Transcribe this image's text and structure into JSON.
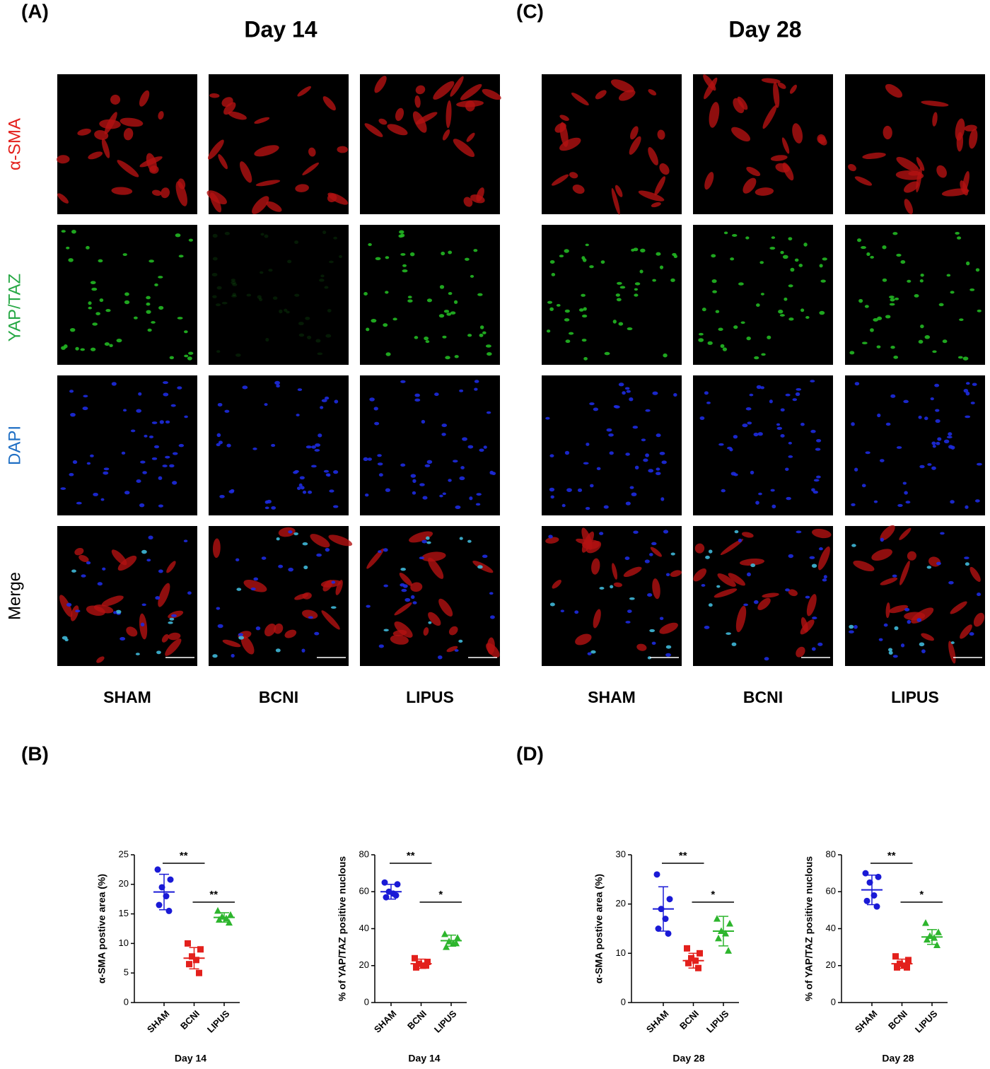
{
  "labels": {
    "a": "(A)",
    "b": "(B)",
    "c": "(C)",
    "d": "(D)"
  },
  "headers": [
    "Day 14",
    "Day 28"
  ],
  "rows": [
    "α-SMA",
    "YAP/TAZ",
    "DAPI",
    "Merge"
  ],
  "columns": [
    [
      "SHAM",
      "BCNI",
      "LIPUS"
    ],
    [
      "SHAM",
      "BCNI",
      "LIPUS"
    ]
  ],
  "chart_data": [
    {
      "type": "dot",
      "ylabel": "α-SMA postive area (%)",
      "xlabel": "Day 14",
      "ylim": [
        0,
        25
      ],
      "yticks": [
        0,
        5,
        10,
        15,
        20,
        25
      ],
      "series": [
        {
          "name": "SHAM",
          "color": "#1a1ad6",
          "marker": "circle",
          "values": [
            22.5,
            20.8,
            19.5,
            18,
            16.5,
            15.5
          ],
          "mean": 18.7,
          "sd": 3
        },
        {
          "name": "BCNI",
          "color": "#e3201c",
          "marker": "square",
          "values": [
            10,
            9,
            7.8,
            7.2,
            6.5,
            5
          ],
          "mean": 7.5,
          "sd": 1.8
        },
        {
          "name": "LIPUS",
          "color": "#2db52d",
          "marker": "triangle",
          "values": [
            15.5,
            14.8,
            14.5,
            14.2,
            14,
            13.5
          ],
          "mean": 14.4,
          "sd": 0.8
        }
      ],
      "annotations": [
        "**",
        "**"
      ]
    },
    {
      "type": "dot",
      "ylabel": "% of YAP/TAZ positive nuclous",
      "xlabel": "Day 14",
      "ylim": [
        0,
        80
      ],
      "yticks": [
        0,
        20,
        40,
        60,
        80
      ],
      "series": [
        {
          "name": "SHAM",
          "color": "#1a1ad6",
          "marker": "circle",
          "values": [
            65,
            64,
            60,
            59,
            57,
            58
          ],
          "mean": 60,
          "sd": 4
        },
        {
          "name": "BCNI",
          "color": "#e3201c",
          "marker": "square",
          "values": [
            24,
            22,
            21,
            20,
            19,
            20
          ],
          "mean": 21,
          "sd": 2.5
        },
        {
          "name": "LIPUS",
          "color": "#2db52d",
          "marker": "triangle",
          "values": [
            37,
            35,
            33,
            32,
            30,
            32
          ],
          "mean": 33.5,
          "sd": 3
        }
      ],
      "annotations": [
        "**",
        "*"
      ]
    },
    {
      "type": "dot",
      "ylabel": "α-SMA postive area (%)",
      "xlabel": "Day 28",
      "ylim": [
        0,
        30
      ],
      "yticks": [
        0,
        10,
        20,
        30
      ],
      "series": [
        {
          "name": "SHAM",
          "color": "#1a1ad6",
          "marker": "circle",
          "values": [
            26,
            21,
            19,
            17,
            15,
            14
          ],
          "mean": 19,
          "sd": 4.5
        },
        {
          "name": "BCNI",
          "color": "#e3201c",
          "marker": "square",
          "values": [
            11,
            10,
            9,
            8.5,
            8,
            7
          ],
          "mean": 8.5,
          "sd": 1.5
        },
        {
          "name": "LIPUS",
          "color": "#2db52d",
          "marker": "triangle",
          "values": [
            17,
            16,
            14.5,
            14,
            13,
            10.5
          ],
          "mean": 14.5,
          "sd": 3
        }
      ],
      "annotations": [
        "**",
        "*"
      ]
    },
    {
      "type": "dot",
      "ylabel": "% of YAP/TAZ positive nuclous",
      "xlabel": "Day 28",
      "ylim": [
        0,
        80
      ],
      "yticks": [
        0,
        20,
        40,
        60,
        80
      ],
      "series": [
        {
          "name": "SHAM",
          "color": "#1a1ad6",
          "marker": "circle",
          "values": [
            70,
            68,
            65,
            58,
            55,
            52
          ],
          "mean": 61,
          "sd": 8
        },
        {
          "name": "BCNI",
          "color": "#e3201c",
          "marker": "square",
          "values": [
            25,
            23,
            21,
            20,
            19,
            19
          ],
          "mean": 21,
          "sd": 2.5
        },
        {
          "name": "LIPUS",
          "color": "#2db52d",
          "marker": "triangle",
          "values": [
            43,
            38,
            36,
            35,
            34,
            31
          ],
          "mean": 35.5,
          "sd": 4
        }
      ],
      "annotations": [
        "**",
        "*"
      ]
    }
  ]
}
